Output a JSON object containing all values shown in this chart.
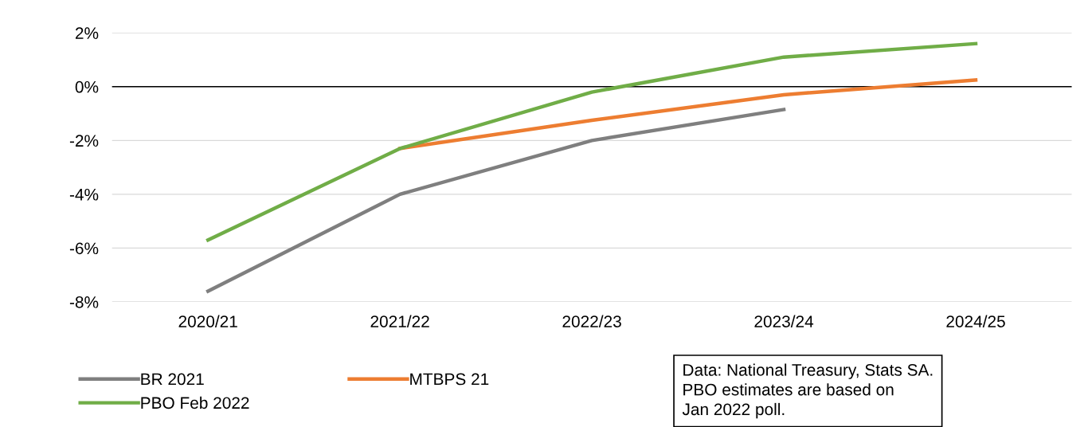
{
  "chart_data": {
    "type": "line",
    "categories": [
      "2020/21",
      "2021/22",
      "2022/23",
      "2023/24",
      "2024/25"
    ],
    "series": [
      {
        "name": "BR 2021",
        "color": "#7f7f7f",
        "values": [
          -7.6,
          -4.0,
          -2.0,
          -0.85,
          null
        ]
      },
      {
        "name": "MTBPS 21",
        "color": "#ed7d31",
        "values": [
          null,
          -2.3,
          -1.25,
          -0.3,
          0.25
        ]
      },
      {
        "name": "PBO Feb 2022",
        "color": "#70ad47",
        "values": [
          -5.7,
          -2.3,
          -0.2,
          1.1,
          1.6
        ]
      }
    ],
    "ylim": [
      -8,
      2
    ],
    "yticks": [
      {
        "value": -8,
        "label": "-8%"
      },
      {
        "value": -6,
        "label": "-6%"
      },
      {
        "value": -4,
        "label": "-4%"
      },
      {
        "value": -2,
        "label": "-2%"
      },
      {
        "value": 0,
        "label": "0%"
      },
      {
        "value": 2,
        "label": "2%"
      }
    ],
    "ref_lines": [
      {
        "axis": "y",
        "value": 0,
        "color": "#000000"
      }
    ],
    "grid": "y",
    "legend": "bottom",
    "marker": "none",
    "line_style": "solid",
    "annotations": [
      "Data: National Treasury, Stats SA.\nPBO estimates are based on\nJan 2022 poll."
    ]
  }
}
